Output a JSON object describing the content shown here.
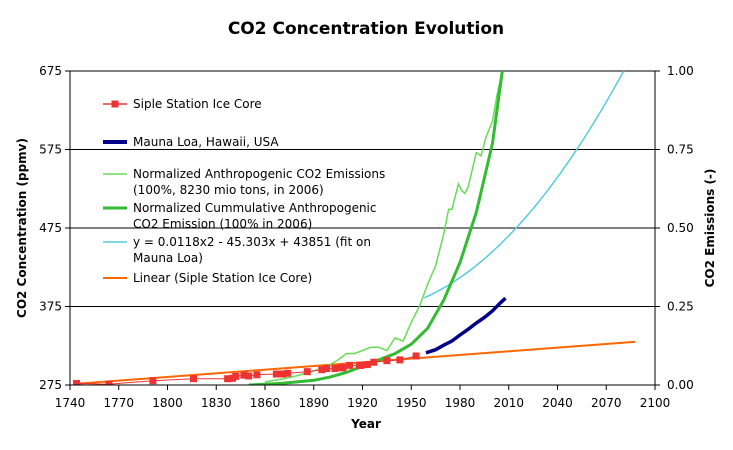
{
  "chart_data": {
    "type": "line",
    "title": "CO2 Concentration Evolution",
    "xlabel": "Year",
    "ylabel": "CO2 Concentration (ppmv)",
    "y2label": "CO2 Emissions (-)",
    "xlim": [
      1740,
      2100
    ],
    "ylim": [
      275,
      675
    ],
    "y2lim": [
      0,
      1
    ],
    "x_ticks": [
      "1740",
      "1770",
      "1800",
      "1830",
      "1860",
      "1890",
      "1920",
      "1950",
      "1980",
      "2010",
      "2040",
      "2070",
      "2100"
    ],
    "y_ticks": [
      "275",
      "375",
      "475",
      "575",
      "675"
    ],
    "y2_ticks": [
      "0.00",
      "0.25",
      "0.50",
      "0.75",
      "1.00"
    ],
    "grid": "horizontal",
    "legend_position": "upper-left",
    "colors": {
      "siple": "#ee3333",
      "mauna_loa": "#000088",
      "emissions": "#66dd55",
      "cumulative": "#33bb33",
      "fit": "#55ccdd",
      "linear": "#ff6600"
    },
    "legend": [
      {
        "key": "siple",
        "lines": [
          "Siple Station Ice Core"
        ]
      },
      {
        "key": "mauna_loa",
        "lines": [
          "Mauna Loa, Hawaii, USA"
        ]
      },
      {
        "key": "emissions",
        "lines": [
          "Normalized Anthropogenic CO2 Emissions",
          "(100%, 8230 mio tons,  in 2006)"
        ]
      },
      {
        "key": "cumulative",
        "lines": [
          "Normalized Cummulative Anthropogenic",
          "CO2 Emission (100% in 2006)"
        ]
      },
      {
        "key": "fit",
        "lines": [
          "y = 0.0118x2 - 45.303x + 43851 (fit on",
          "Mauna Loa)"
        ]
      },
      {
        "key": "linear",
        "lines": [
          "Linear (Siple Station Ice Core)"
        ]
      }
    ],
    "series": [
      {
        "name": "Siple Station Ice Core",
        "key": "siple",
        "axis": "left",
        "points": [
          [
            1744,
            277
          ],
          [
            1764,
            276
          ],
          [
            1791,
            280.5
          ],
          [
            1816,
            283
          ],
          [
            1837,
            283
          ],
          [
            1840,
            283.5
          ],
          [
            1842,
            286
          ],
          [
            1847,
            287.5
          ],
          [
            1850,
            286.5
          ],
          [
            1855,
            288
          ],
          [
            1867,
            289
          ],
          [
            1871,
            289
          ],
          [
            1874,
            290
          ],
          [
            1886,
            292
          ],
          [
            1895,
            294.5
          ],
          [
            1898,
            296
          ],
          [
            1903,
            296
          ],
          [
            1907,
            297
          ],
          [
            1908,
            297
          ],
          [
            1912,
            300
          ],
          [
            1918,
            300
          ],
          [
            1919,
            300
          ],
          [
            1923,
            301
          ],
          [
            1927,
            304
          ],
          [
            1935,
            306
          ],
          [
            1943,
            307
          ],
          [
            1953,
            312
          ]
        ]
      },
      {
        "name": "Mauna Loa, Hawaii, USA",
        "key": "mauna_loa",
        "axis": "left",
        "points": [
          [
            1959,
            316
          ],
          [
            1965,
            320
          ],
          [
            1970,
            325.7
          ],
          [
            1975,
            331
          ],
          [
            1980,
            338.7
          ],
          [
            1985,
            346
          ],
          [
            1990,
            354
          ],
          [
            1995,
            361
          ],
          [
            2000,
            369.5
          ],
          [
            2005,
            379.8
          ],
          [
            2008,
            385.6
          ]
        ]
      },
      {
        "name": "Normalized Anthropogenic CO2 Emissions (100%, 8230 mio tons,  in 2006)",
        "key": "emissions",
        "axis": "right",
        "points": [
          [
            1860,
            0.01
          ],
          [
            1870,
            0.018
          ],
          [
            1880,
            0.03
          ],
          [
            1890,
            0.045
          ],
          [
            1900,
            0.065
          ],
          [
            1905,
            0.08
          ],
          [
            1910,
            0.1
          ],
          [
            1915,
            0.1
          ],
          [
            1920,
            0.11
          ],
          [
            1925,
            0.12
          ],
          [
            1930,
            0.12
          ],
          [
            1935,
            0.11
          ],
          [
            1940,
            0.15
          ],
          [
            1945,
            0.14
          ],
          [
            1950,
            0.2
          ],
          [
            1955,
            0.25
          ],
          [
            1960,
            0.32
          ],
          [
            1965,
            0.38
          ],
          [
            1970,
            0.48
          ],
          [
            1973,
            0.56
          ],
          [
            1975,
            0.56
          ],
          [
            1979,
            0.64
          ],
          [
            1981,
            0.62
          ],
          [
            1983,
            0.61
          ],
          [
            1985,
            0.63
          ],
          [
            1990,
            0.74
          ],
          [
            1993,
            0.73
          ],
          [
            1996,
            0.79
          ],
          [
            2000,
            0.84
          ],
          [
            2003,
            0.93
          ],
          [
            2006,
            1.0
          ]
        ]
      },
      {
        "name": "Normalized Cummulative Anthropogenic CO2 Emission (100% in 2006)",
        "key": "cumulative",
        "axis": "right",
        "points": [
          [
            1850,
            0.0
          ],
          [
            1870,
            0.005
          ],
          [
            1890,
            0.015
          ],
          [
            1900,
            0.025
          ],
          [
            1910,
            0.04
          ],
          [
            1920,
            0.06
          ],
          [
            1930,
            0.08
          ],
          [
            1940,
            0.1
          ],
          [
            1950,
            0.13
          ],
          [
            1960,
            0.18
          ],
          [
            1970,
            0.27
          ],
          [
            1980,
            0.39
          ],
          [
            1990,
            0.55
          ],
          [
            2000,
            0.77
          ],
          [
            2006,
            1.0
          ]
        ]
      },
      {
        "name": "y = 0.0118x2 - 45.303x + 43851 (fit on Mauna Loa)",
        "key": "fit",
        "axis": "left",
        "formula": {
          "a": 0.0118,
          "b": -45.303,
          "c": 43851
        },
        "x_range": [
          1958,
          2100
        ]
      },
      {
        "name": "Linear (Siple Station Ice Core)",
        "key": "linear",
        "axis": "left",
        "points": [
          [
            1744,
            276.5
          ],
          [
            2088,
            330
          ]
        ]
      }
    ]
  }
}
